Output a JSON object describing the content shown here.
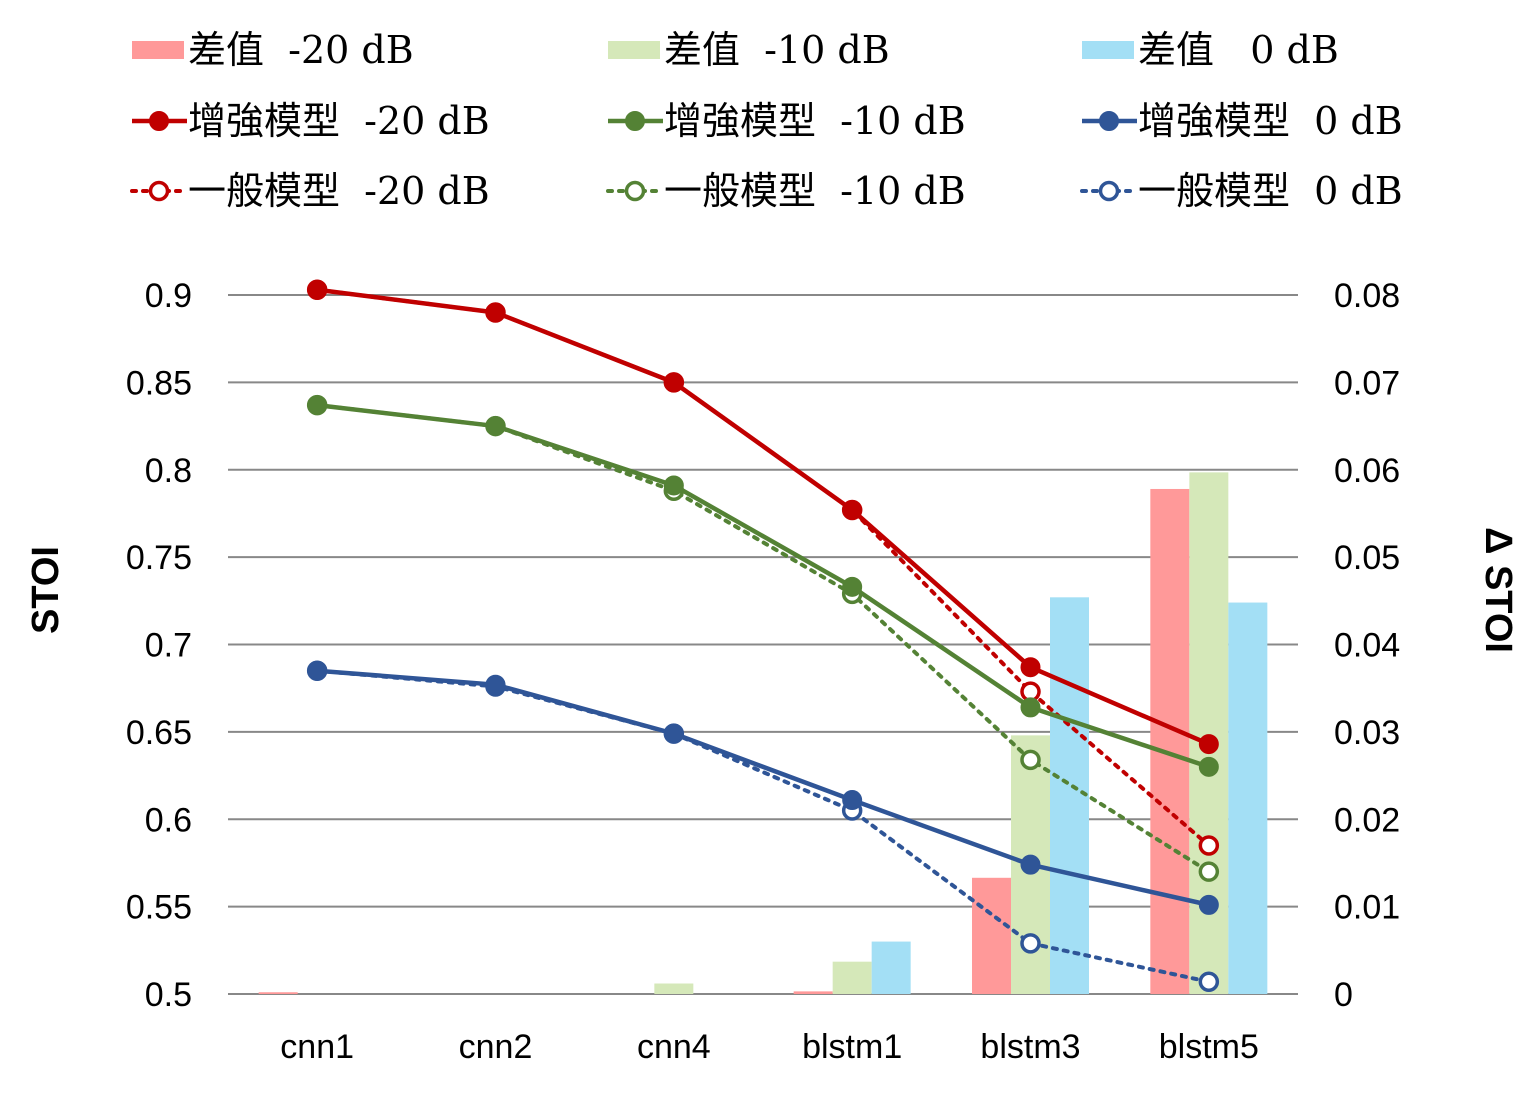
{
  "chart_data": {
    "type": "bar+line",
    "categories": [
      "cnn1",
      "cnn2",
      "cnn4",
      "blstm1",
      "blstm3",
      "blstm5"
    ],
    "left_axis": {
      "label": "STOI",
      "range": [
        0.5,
        0.9
      ],
      "ticks": [
        "0.5",
        "0.55",
        "0.6",
        "0.65",
        "0.7",
        "0.75",
        "0.8",
        "0.85",
        "0.9"
      ]
    },
    "right_axis": {
      "label": "Δ STOI",
      "range": [
        0,
        0.08
      ],
      "ticks": [
        "0",
        "0.01",
        "0.02",
        "0.03",
        "0.04",
        "0.05",
        "0.06",
        "0.07",
        "0.08"
      ]
    },
    "grid": true,
    "legend_position": "top",
    "bar_series": [
      {
        "name": "差值  -20 dB",
        "axis": "right",
        "color": "#ff9999",
        "values": [
          0.0002,
          0,
          0,
          0.0003,
          0.0133,
          0.0578
        ]
      },
      {
        "name": "差值  -10 dB",
        "axis": "right",
        "color": "#d5e8b9",
        "values": [
          0,
          0,
          0.0012,
          0.0037,
          0.0296,
          0.0597
        ]
      },
      {
        "name": "差值   0 dB",
        "axis": "right",
        "color": "#a3dff5",
        "values": [
          0,
          0,
          0,
          0.006,
          0.0454,
          0.0448
        ]
      }
    ],
    "line_series": [
      {
        "name": "增強模型  -20 dB",
        "axis": "left",
        "style": "solid",
        "marker": "filled",
        "color": "#c00000",
        "values": [
          0.903,
          0.89,
          0.85,
          0.777,
          0.687,
          0.643
        ]
      },
      {
        "name": "增強模型  -10 dB",
        "axis": "left",
        "style": "solid",
        "marker": "filled",
        "color": "#548235",
        "values": [
          0.837,
          0.825,
          0.791,
          0.733,
          0.664,
          0.63
        ]
      },
      {
        "name": "增強模型  0 dB",
        "axis": "left",
        "style": "solid",
        "marker": "filled",
        "color": "#2f5597",
        "values": [
          0.685,
          0.677,
          0.649,
          0.611,
          0.574,
          0.551
        ]
      },
      {
        "name": "一般模型  -20 dB",
        "axis": "left",
        "style": "dotted",
        "marker": "hollow",
        "color": "#c00000",
        "values": [
          0.903,
          0.89,
          0.85,
          0.777,
          0.673,
          0.585
        ]
      },
      {
        "name": "一般模型  -10 dB",
        "axis": "left",
        "style": "dotted",
        "marker": "hollow",
        "color": "#548235",
        "values": [
          0.837,
          0.825,
          0.788,
          0.729,
          0.634,
          0.57
        ]
      },
      {
        "name": "一般模型  0 dB",
        "axis": "left",
        "style": "dotted",
        "marker": "hollow",
        "color": "#2f5597",
        "values": [
          0.685,
          0.676,
          0.649,
          0.605,
          0.529,
          0.507
        ]
      }
    ],
    "legend": [
      {
        "label": "差值  -20 dB",
        "kind": "bar",
        "series": 0
      },
      {
        "label": "差值  -10 dB",
        "kind": "bar",
        "series": 1
      },
      {
        "label": "差值   0 dB",
        "kind": "bar",
        "series": 2
      },
      {
        "label": "增強模型  -20 dB",
        "kind": "line",
        "series": 0
      },
      {
        "label": "增強模型  -10 dB",
        "kind": "line",
        "series": 1
      },
      {
        "label": "增強模型  0 dB",
        "kind": "line",
        "series": 2
      },
      {
        "label": "一般模型  -20 dB",
        "kind": "line",
        "series": 3
      },
      {
        "label": "一般模型  -10 dB",
        "kind": "line",
        "series": 4
      },
      {
        "label": "一般模型  0 dB",
        "kind": "line",
        "series": 5
      }
    ]
  }
}
